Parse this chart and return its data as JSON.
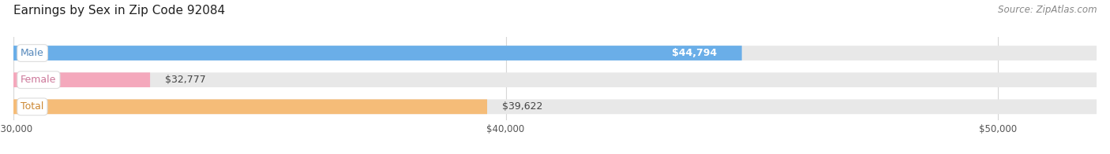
{
  "title": "Earnings by Sex in Zip Code 92084",
  "source": "Source: ZipAtlas.com",
  "categories": [
    "Male",
    "Female",
    "Total"
  ],
  "values": [
    44794,
    32777,
    39622
  ],
  "labels": [
    "$44,794",
    "$32,777",
    "$39,622"
  ],
  "bar_colors": [
    "#6aaee8",
    "#f4a8bc",
    "#f5bc78"
  ],
  "label_inside": [
    true,
    false,
    false
  ],
  "xlim_min": 30000,
  "xlim_max": 52000,
  "xticks": [
    30000,
    40000,
    50000
  ],
  "xtick_labels": [
    "$30,000",
    "$40,000",
    "$50,000"
  ],
  "background_color": "#ffffff",
  "bar_bg_color": "#e8e8e8",
  "title_fontsize": 11,
  "label_fontsize": 9,
  "source_fontsize": 8.5,
  "cat_label_color_male": "#5588bb",
  "cat_label_color_female": "#cc7799",
  "cat_label_color_total": "#cc8833",
  "cat_label_colors": [
    "#5588bb",
    "#cc7799",
    "#cc8833"
  ]
}
